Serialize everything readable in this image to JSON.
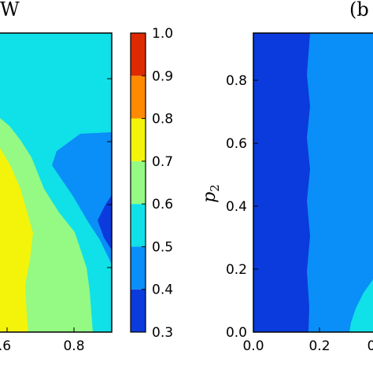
{
  "chart_data": [
    {
      "type": "contourf",
      "panel_label": "W",
      "x_tick_labels": [
        ".6",
        "0.8"
      ],
      "y_tick_labels": [],
      "xlabel": "",
      "ylabel": "",
      "note": "cropped panel; visible region shows roughly x in [0.54, 0.96], y in [0, 0.95]",
      "contour_regions": [
        {
          "level_range": [
            0.7,
            0.8
          ],
          "color": "#f4f40a",
          "description": "lower-left core"
        },
        {
          "level_range": [
            0.6,
            0.7
          ],
          "color": "#94fa83",
          "description": "band around core"
        },
        {
          "level_range": [
            0.5,
            0.6
          ],
          "color": "#10e0e8",
          "description": "background"
        },
        {
          "level_range": [
            0.4,
            0.5
          ],
          "color": "#0a8ef7",
          "description": "right wedge"
        },
        {
          "level_range": [
            0.3,
            0.4
          ],
          "color": "#0b3bdc",
          "description": "right-edge core"
        }
      ]
    },
    {
      "type": "colorbar",
      "tick_labels": [
        "1.0",
        "0.9",
        "0.8",
        "0.7",
        "0.6",
        "0.5",
        "0.4",
        "0.3"
      ],
      "levels": [
        0.3,
        0.4,
        0.5,
        0.6,
        0.7,
        0.8,
        0.9,
        1.0
      ],
      "colors": [
        "#0b3bdc",
        "#0a8ef7",
        "#10e0e8",
        "#94fa83",
        "#f4f40a",
        "#ff8a00",
        "#dd2a00"
      ]
    },
    {
      "type": "contourf",
      "panel_label": "(b",
      "xlabel": "",
      "ylabel_main": "p",
      "ylabel_sub": "2",
      "x_tick_labels": [
        "0.0",
        "0.2",
        "0"
      ],
      "y_tick_labels": [
        "0.8",
        "0.6",
        "0.4",
        "0.2",
        "0.0"
      ],
      "xlim": [
        0.0,
        0.6
      ],
      "ylim": [
        0.0,
        0.95
      ],
      "contour_regions": [
        {
          "level_range": [
            0.3,
            0.4
          ],
          "color": "#0b3bdc",
          "description": "left region x < ~0.17"
        },
        {
          "level_range": [
            0.4,
            0.5
          ],
          "color": "#0a8ef7",
          "description": "right region"
        },
        {
          "level_range": [
            0.5,
            0.6
          ],
          "color": "#10e0e8",
          "description": "bottom-right corner"
        }
      ]
    }
  ]
}
